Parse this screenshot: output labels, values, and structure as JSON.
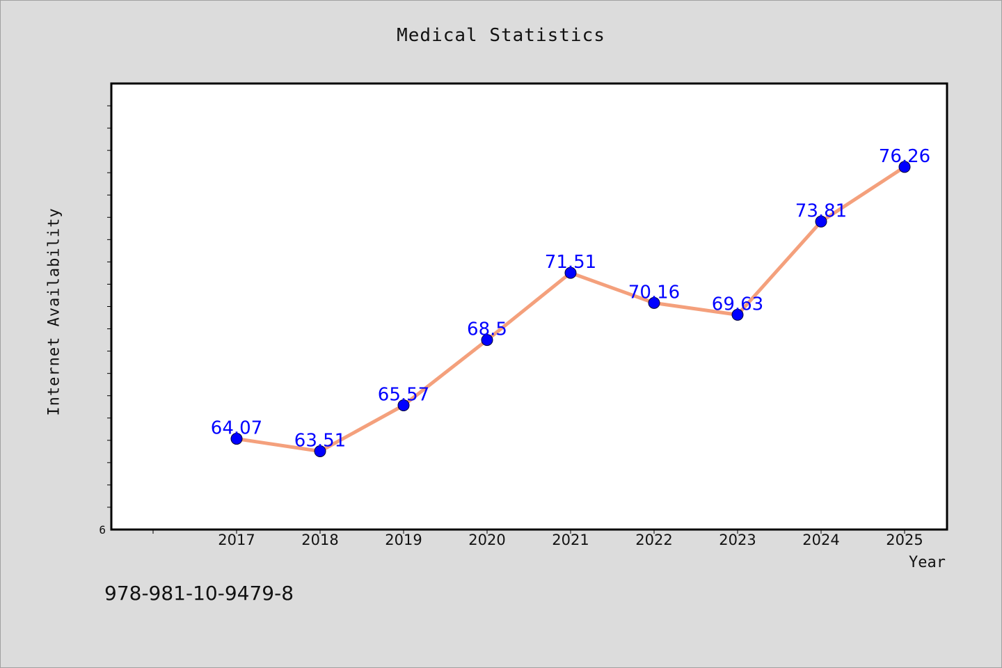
{
  "chart_data": {
    "type": "line",
    "title": "Medical Statistics",
    "xlabel": "Year",
    "ylabel": "Internet Availability",
    "categories": [
      "2017",
      "2018",
      "2019",
      "2020",
      "2021",
      "2022",
      "2023",
      "2024",
      "2025"
    ],
    "series": [
      {
        "values": [
          64.07,
          63.51,
          65.57,
          68.5,
          71.51,
          70.16,
          69.63,
          73.81,
          76.26
        ],
        "labels": [
          "64.07",
          "63.51",
          "65.57",
          "68.5",
          "71.51",
          "70.16",
          "69.63",
          "73.81",
          "76.26"
        ]
      }
    ],
    "y_tick_labels": [
      "6"
    ],
    "ylim": [
      60,
      80
    ],
    "grid": false,
    "colors": {
      "line": "#f4a07c",
      "marker": "#0000ff",
      "data_label": "#0000ff"
    }
  },
  "footer": {
    "isbn": "978-981-10-9479-8"
  }
}
